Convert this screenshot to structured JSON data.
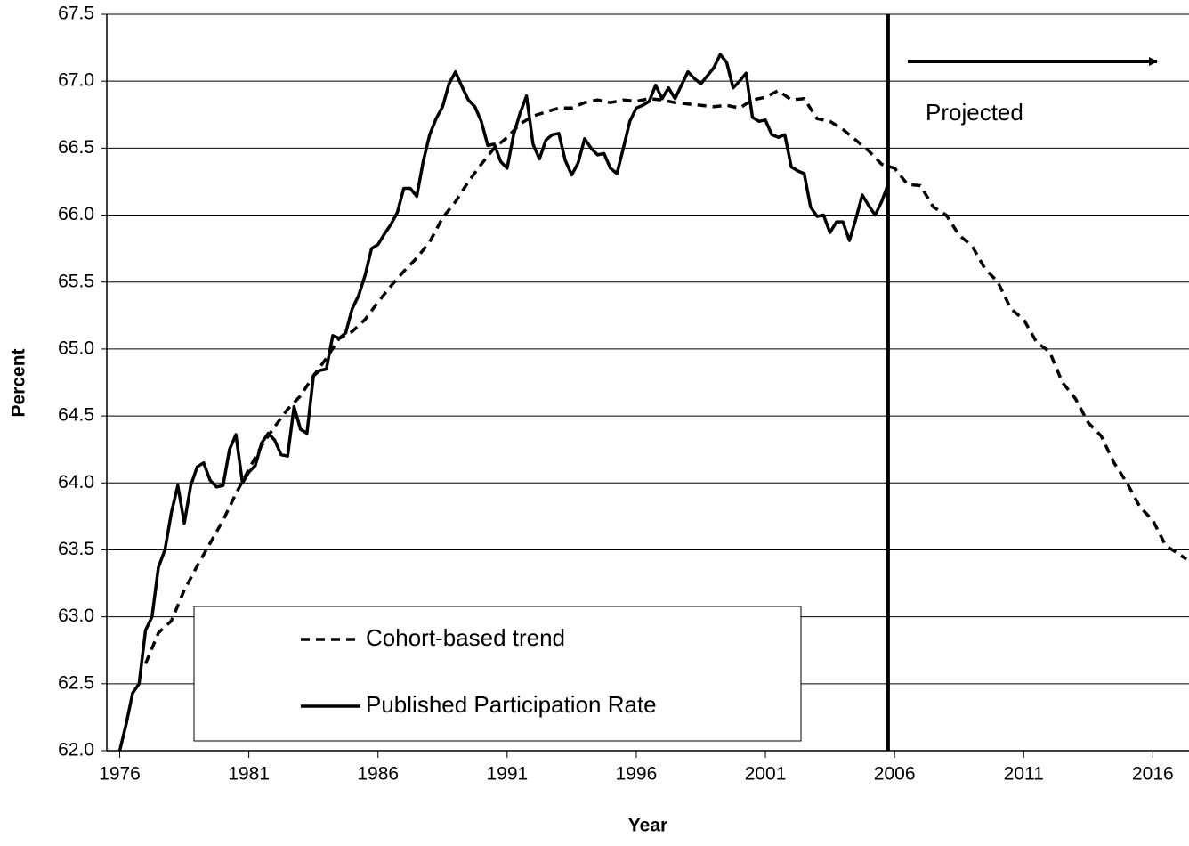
{
  "chart_data": {
    "type": "line",
    "title": null,
    "xlabel": "Year",
    "ylabel": "Percent",
    "annotation": "Projected",
    "xlim": [
      1975.5,
      2017.4
    ],
    "xticks": [
      1976,
      1981,
      1986,
      1991,
      1996,
      2001,
      2006,
      2011,
      2016
    ],
    "ylim": [
      62,
      67.5
    ],
    "yticks": [
      {
        "value": 62,
        "label": "62.0"
      },
      62.5,
      {
        "value": 63,
        "label": "63.0"
      },
      63.5,
      {
        "value": 64,
        "label": "64.0"
      },
      64.5,
      {
        "value": 65,
        "label": "65.0"
      },
      65.5,
      {
        "value": 66,
        "label": "66.0"
      },
      66.5,
      {
        "value": 67,
        "label": "67.0"
      },
      67.5
    ],
    "grid": true,
    "legend": "lower-left",
    "series": [
      {
        "name": "Cohort-based trend",
        "color": "#000000",
        "dashed": true,
        "x": [
          1977,
          1977.5,
          1978,
          1978.5,
          1979,
          1979.5,
          1980,
          1980.5,
          1981,
          1981.5,
          1982,
          1982.5,
          1983,
          1983.5,
          1984,
          1984.5,
          1985,
          1985.5,
          1986,
          1986.5,
          1987,
          1987.5,
          1988,
          1988.5,
          1989,
          1989.5,
          1990,
          1990.5,
          1991,
          1991.5,
          1992,
          1992.5,
          1993,
          1993.5,
          1994,
          1994.5,
          1995,
          1995.5,
          1996,
          1996.5,
          1997,
          1997.5,
          1998,
          1998.5,
          1999,
          1999.5,
          2000,
          2000.5,
          2001,
          2001.5,
          2002,
          2002.5,
          2003,
          2003.5,
          2004,
          2004.5,
          2005,
          2005.5,
          2006,
          2006.5,
          2007,
          2007.5,
          2008,
          2008.5,
          2009,
          2009.5,
          2010,
          2010.5,
          2011,
          2011.5,
          2012,
          2012.5,
          2013,
          2013.5,
          2014,
          2014.5,
          2015,
          2015.5,
          2016,
          2016.5,
          2017,
          2017.3
        ],
        "values": [
          62.65,
          62.88,
          62.97,
          63.2,
          63.38,
          63.55,
          63.72,
          63.92,
          64.1,
          64.28,
          64.42,
          64.55,
          64.65,
          64.8,
          64.93,
          65.08,
          65.13,
          65.22,
          65.35,
          65.47,
          65.58,
          65.68,
          65.8,
          65.98,
          66.1,
          66.25,
          66.38,
          66.5,
          66.58,
          66.68,
          66.74,
          66.77,
          66.8,
          66.8,
          66.84,
          66.86,
          66.84,
          66.86,
          66.85,
          66.87,
          66.86,
          66.84,
          66.83,
          66.82,
          66.81,
          66.82,
          66.8,
          66.86,
          66.88,
          66.93,
          66.86,
          66.87,
          66.72,
          66.7,
          66.64,
          66.56,
          66.48,
          66.38,
          66.35,
          66.23,
          66.22,
          66.06,
          66.0,
          65.85,
          65.77,
          65.6,
          65.5,
          65.3,
          65.22,
          65.05,
          64.98,
          64.75,
          64.63,
          64.45,
          64.35,
          64.15,
          64.0,
          63.82,
          63.72,
          63.53,
          63.47,
          63.43
        ]
      },
      {
        "name": "Published Participation Rate",
        "color": "#000000",
        "dashed": false,
        "x": [
          1976,
          1976.25,
          1976.5,
          1976.75,
          1977,
          1977.25,
          1977.5,
          1977.75,
          1978,
          1978.25,
          1978.5,
          1978.75,
          1979,
          1979.25,
          1979.5,
          1979.75,
          1980,
          1980.25,
          1980.5,
          1980.75,
          1981,
          1981.25,
          1981.5,
          1981.75,
          1982,
          1982.25,
          1982.5,
          1982.75,
          1983,
          1983.25,
          1983.5,
          1983.75,
          1984,
          1984.25,
          1984.5,
          1984.75,
          1985,
          1985.25,
          1985.5,
          1985.75,
          1986,
          1986.25,
          1986.5,
          1986.75,
          1987,
          1987.25,
          1987.5,
          1987.75,
          1988,
          1988.25,
          1988.5,
          1988.75,
          1989,
          1989.25,
          1989.5,
          1989.75,
          1990,
          1990.25,
          1990.5,
          1990.75,
          1991,
          1991.25,
          1991.5,
          1991.75,
          1992,
          1992.25,
          1992.5,
          1992.75,
          1993,
          1993.25,
          1993.5,
          1993.75,
          1994,
          1994.25,
          1994.5,
          1994.75,
          1995,
          1995.25,
          1995.5,
          1995.75,
          1996,
          1996.25,
          1996.5,
          1996.75,
          1997,
          1997.25,
          1997.5,
          1997.75,
          1998,
          1998.25,
          1998.5,
          1998.75,
          1999,
          1999.25,
          1999.5,
          1999.75,
          2000,
          2000.25,
          2000.5,
          2000.75,
          2001,
          2001.25,
          2001.5,
          2001.75,
          2002,
          2002.25,
          2002.5,
          2002.75,
          2003,
          2003.25,
          2003.5,
          2003.75,
          2004,
          2004.25,
          2004.5,
          2004.75,
          2005,
          2005.25,
          2005.5,
          2005.75
        ],
        "values": [
          62.0,
          62.2,
          62.43,
          62.5,
          62.9,
          63.0,
          63.37,
          63.5,
          63.78,
          63.98,
          63.7,
          63.98,
          64.12,
          64.15,
          64.02,
          63.97,
          63.98,
          64.25,
          64.36,
          64.0,
          64.08,
          64.13,
          64.3,
          64.37,
          64.32,
          64.21,
          64.2,
          64.57,
          64.4,
          64.37,
          64.8,
          64.84,
          64.85,
          65.1,
          65.08,
          65.12,
          65.3,
          65.4,
          65.55,
          65.75,
          65.78,
          65.86,
          65.93,
          66.02,
          66.2,
          66.2,
          66.14,
          66.4,
          66.6,
          66.72,
          66.81,
          66.98,
          67.07,
          66.96,
          66.86,
          66.81,
          66.7,
          66.52,
          66.53,
          66.4,
          66.35,
          66.6,
          66.76,
          66.89,
          66.53,
          66.42,
          66.56,
          66.6,
          66.61,
          66.41,
          66.3,
          66.39,
          66.57,
          66.5,
          66.45,
          66.46,
          66.35,
          66.31,
          66.5,
          66.7,
          66.8,
          66.82,
          66.85,
          66.97,
          66.87,
          66.95,
          66.87,
          66.97,
          67.07,
          67.02,
          66.98,
          67.04,
          67.1,
          67.2,
          67.14,
          66.95,
          67.0,
          67.06,
          66.73,
          66.7,
          66.71,
          66.6,
          66.58,
          66.6,
          66.36,
          66.33,
          66.31,
          66.06,
          65.99,
          66.0,
          65.87,
          65.95,
          65.95,
          65.81,
          65.97,
          66.15,
          66.07,
          66.0,
          66.1,
          66.23
        ]
      }
    ]
  }
}
